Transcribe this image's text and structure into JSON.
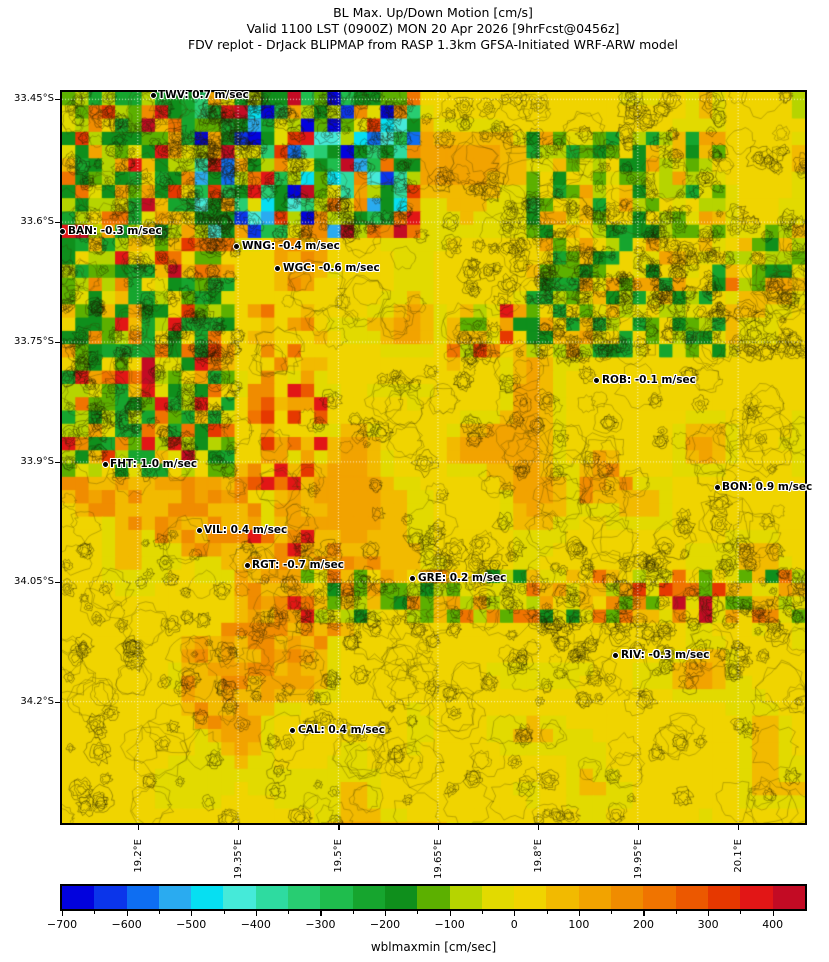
{
  "header": {
    "title": "BL Max. Up/Down Motion [cm/s]",
    "valid_line": "Valid 1100 LST (0900Z) MON 20 Apr 2026 [9hrFcst@0456z]",
    "model_line": "FDV replot - DrJack BLIPMAP from RASP 1.3km GFSA-Initiated WRF-ARW model"
  },
  "chart_data": {
    "type": "heatmap",
    "title": "BL Max. Up/Down Motion [cm/s]",
    "subtitle": "Valid 1100 LST (0900Z) MON 20 Apr 2026 [9hrFcst@0456z]",
    "caption": "FDV replot - DrJack BLIPMAP from RASP 1.3km GFSA-Initiated WRF-ARW model",
    "grid": "white dotted graticule at each tick",
    "x_axis": {
      "ticks": [
        "19.2°E",
        "19.35°E",
        "19.5°E",
        "19.65°E",
        "19.8°E",
        "19.95°E",
        "20.1°E"
      ],
      "tick_pct": [
        10.2,
        23.7,
        37.2,
        50.6,
        64.1,
        77.5,
        91.0
      ]
    },
    "y_axis": {
      "ticks": [
        "33.45°S",
        "33.6°S",
        "33.75°S",
        "33.9°S",
        "34.05°S",
        "34.2°S"
      ],
      "tick_pct": [
        1.0,
        17.8,
        34.2,
        50.6,
        67.0,
        83.4
      ]
    },
    "colorbar": {
      "label": "wblmaxmin [cm/sec]",
      "min": -700,
      "max": 450,
      "bin_size": 50,
      "tick_labels": [
        "−700",
        "−600",
        "−500",
        "−400",
        "−300",
        "−200",
        "−100",
        "0",
        "100",
        "200",
        "300",
        "400"
      ],
      "tick_values": [
        -700,
        -600,
        -500,
        -400,
        -300,
        -200,
        -100,
        0,
        100,
        200,
        300,
        400
      ],
      "colors": [
        "#0202dd",
        "#0b35ea",
        "#0e6ef2",
        "#2aabf0",
        "#06dff2",
        "#45ead9",
        "#2edba0",
        "#28cd72",
        "#1fbd4d",
        "#16a52e",
        "#0f8f1c",
        "#5cb000",
        "#b6d400",
        "#e2da00",
        "#f0d400",
        "#f2ba00",
        "#f2a300",
        "#f08c00",
        "#f07400",
        "#ec5800",
        "#e63800",
        "#e21616",
        "#c30b24"
      ]
    },
    "stations": [
      {
        "code": "TWV",
        "value_m_s": 0.7,
        "label": "TWV: 0.7 m/sec",
        "x_pct": 12.25,
        "y_pct": 0.41
      },
      {
        "code": "BAN",
        "value_m_s": -0.3,
        "label": "BAN: -0.3 m/sec",
        "x_pct": 0.13,
        "y_pct": 19.15
      },
      {
        "code": "WNG",
        "value_m_s": -0.4,
        "label": "WNG: -0.4 m/sec",
        "x_pct": 23.55,
        "y_pct": 21.07
      },
      {
        "code": "WGC",
        "value_m_s": -0.6,
        "label": "WGC: -0.6 m/sec",
        "x_pct": 29.07,
        "y_pct": 24.08
      },
      {
        "code": "ROB",
        "value_m_s": -0.1,
        "label": "ROB: -0.1 m/sec",
        "x_pct": 72.0,
        "y_pct": 39.53
      },
      {
        "code": "FHT",
        "value_m_s": 1.0,
        "label": "FHT: 1.0 m/sec",
        "x_pct": 5.79,
        "y_pct": 50.89
      },
      {
        "code": "BON",
        "value_m_s": 0.9,
        "label": "BON: 0.9 m/sec",
        "x_pct": 88.16,
        "y_pct": 54.17
      },
      {
        "code": "VIL",
        "value_m_s": 0.4,
        "label": "VIL: 0.4 m/sec",
        "x_pct": 18.44,
        "y_pct": 60.05
      },
      {
        "code": "RGT",
        "value_m_s": -0.7,
        "label": "RGT: -0.7 m/sec",
        "x_pct": 24.9,
        "y_pct": 64.84
      },
      {
        "code": "GRE",
        "value_m_s": 0.2,
        "label": "GRE: 0.2 m/sec",
        "x_pct": 47.24,
        "y_pct": 66.62
      },
      {
        "code": "RIV",
        "value_m_s": -0.3,
        "label": "RIV: -0.3 m/sec",
        "x_pct": 74.56,
        "y_pct": 77.15
      },
      {
        "code": "CAL",
        "value_m_s": 0.4,
        "label": "CAL: 0.4 m/sec",
        "x_pct": 31.09,
        "y_pct": 87.28
      }
    ]
  }
}
